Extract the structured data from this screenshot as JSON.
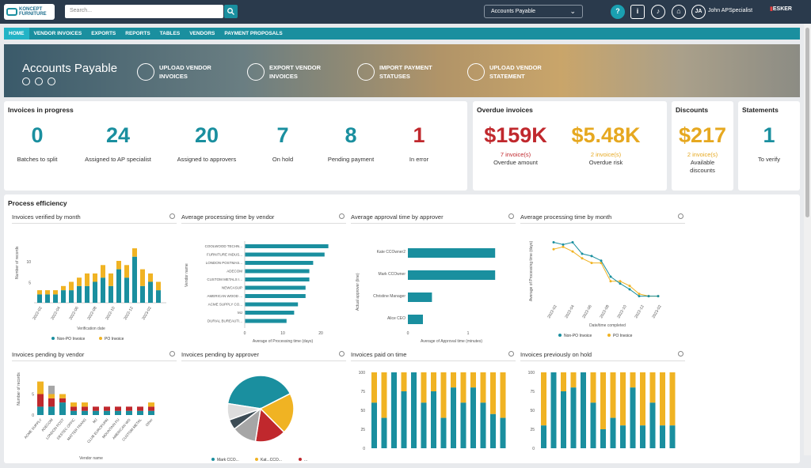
{
  "app": {
    "logo_line1": "KONCEPT",
    "logo_line2": "FURNITURE",
    "search_placeholder": "Search...",
    "view_selector": "Accounts Payable",
    "user_name": "John APSpecialist",
    "user_initials": "JA",
    "brand": "ESKER"
  },
  "nav": [
    "HOME",
    "VENDOR INVOICES",
    "EXPORTS",
    "REPORTS",
    "TABLES",
    "VENDORS",
    "PAYMENT PROPOSALS"
  ],
  "banner": {
    "title": "Accounts Payable",
    "actions": [
      [
        "UPLOAD VENDOR",
        "INVOICES"
      ],
      [
        "EXPORT VENDOR",
        "INVOICES"
      ],
      [
        "IMPORT PAYMENT",
        "STATUSES"
      ],
      [
        "UPLOAD VENDOR",
        "STATEMENT"
      ]
    ]
  },
  "progress": {
    "title": "Invoices in progress",
    "items": [
      {
        "n": "0",
        "l": "Batches to split"
      },
      {
        "n": "24",
        "l": "Assigned to AP specialist"
      },
      {
        "n": "20",
        "l": "Assigned to approvers"
      },
      {
        "n": "7",
        "l": "On hold"
      },
      {
        "n": "8",
        "l": "Pending payment"
      },
      {
        "n": "1",
        "l": "In error"
      }
    ]
  },
  "overdue": {
    "title": "Overdue invoices",
    "amount": "$159K",
    "amount_sub": "7 invoice(s)",
    "amount_label": "Overdue amount",
    "risk": "$5.48K",
    "risk_sub": "2 invoice(s)",
    "risk_label": "Overdue risk"
  },
  "discounts": {
    "title": "Discounts",
    "n": "$217",
    "sub": "2 invoice(s)",
    "l1": "Available",
    "l2": "discounts"
  },
  "statements": {
    "title": "Statements",
    "n": "1",
    "l": "To verify"
  },
  "efficiency": {
    "title": "Process efficiency"
  },
  "colors": {
    "teal": "#1a8f9f",
    "amber": "#f0b323",
    "red": "#c0282d",
    "gray": "#a6a6a6",
    "dark": "#3d4c55"
  },
  "charts": {
    "verified": {
      "title": "Invoices verified by month",
      "ylabel": "Number of records",
      "xlabel": "Verification date",
      "yticks": [
        "5",
        "10"
      ],
      "categories": [
        "2022-02",
        "2022-04",
        "2022-06",
        "2022-08",
        "2022-10",
        "2022-12",
        "2023-02"
      ],
      "non_po": [
        2,
        2,
        2,
        3,
        3,
        4,
        4,
        5,
        6,
        4,
        8,
        6,
        11,
        4,
        5,
        3
      ],
      "po": [
        1,
        1,
        1,
        1,
        2,
        2,
        3,
        2,
        3,
        3,
        2,
        3,
        2,
        4,
        2,
        2
      ],
      "legend": [
        "Non-PO Invoice",
        "PO Invoice"
      ]
    },
    "proc_vendor": {
      "title": "Average processing time by vendor",
      "ylabel": "Vendor name",
      "xlabel": "Average of Processing time (days)",
      "xticks": [
        "0",
        "10",
        "20"
      ],
      "vendors": [
        "COOLWOOD TECHN...",
        "FURNITURE INDUS...",
        "LONDON POSTMAS...",
        "ADECOM",
        "CUSTOM METALS I...",
        "NEWCASUP",
        "AMERICAN WOOD ...",
        "ACME SUPPLY CO...",
        "MJ",
        "DURIAL BUREAUTI..."
      ],
      "values": [
        22,
        21,
        18,
        17,
        17,
        16,
        16,
        14,
        13,
        11
      ]
    },
    "approval": {
      "title": "Average approval time by approver",
      "ylabel": "Actual approver (line)",
      "xlabel": "Average of Approval time (minutes)",
      "xticks": [
        "0",
        "1"
      ],
      "approvers": [
        "Kate CCOwner2",
        "Mark CCOwner",
        "Christine Manager",
        "Alice CEO"
      ],
      "values": [
        1.45,
        1.45,
        0.4,
        0.25
      ]
    },
    "proc_month": {
      "title": "Average processing time by month",
      "ylabel": "Average of Processing time (days)",
      "xlabel": "Date/time completed",
      "categories": [
        "2022-02",
        "2022-04",
        "2022-06",
        "2022-08",
        "2022-10",
        "2022-12",
        "2023-02"
      ],
      "non_po": [
        50,
        48,
        50,
        40,
        38,
        34,
        20,
        14,
        9,
        3,
        3,
        3
      ],
      "po": [
        44,
        46,
        42,
        36,
        32,
        32,
        16,
        16,
        12,
        5,
        3,
        3
      ],
      "legend": [
        "Non-PO Invoice",
        "PO Invoice"
      ]
    },
    "pend_vendor": {
      "title": "Invoices pending by vendor",
      "ylabel": "Number of records",
      "xlabel": "Vendor name",
      "yticks": [
        "0",
        "5"
      ],
      "vendors": [
        "ACME SUPPLY",
        "ADECOM",
        "LONDON POST",
        "DESTEC OFFIC",
        "MATTER TRANS",
        "MJ",
        "CLUB EUROFURN",
        "MOUNTAIN FU",
        "AMERICAN WO",
        "CUSTOM METAL",
        "Other"
      ]
    },
    "pend_approver": {
      "title": "Invoices pending by approver",
      "legend": [
        "Mark CCO...",
        "Kat...CCO...",
        "..."
      ],
      "slices": [
        40,
        20,
        15,
        12,
        5,
        8
      ]
    },
    "paid_on_time": {
      "title": "Invoices paid on time",
      "yticks": [
        "0",
        "25",
        "50",
        "75",
        "100"
      ]
    },
    "prev_hold": {
      "title": "Invoices previously on hold",
      "yticks": [
        "0",
        "25",
        "50",
        "75",
        "100"
      ]
    }
  }
}
